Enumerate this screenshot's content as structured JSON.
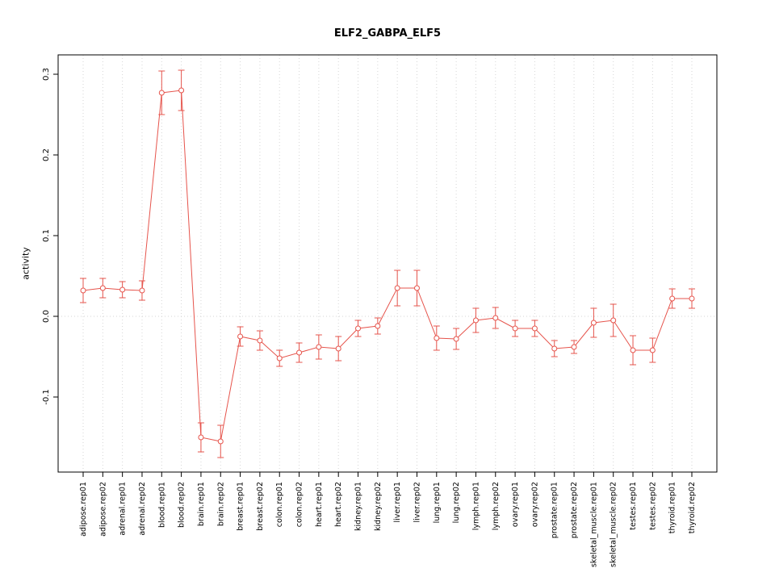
{
  "title": "ELF2_GABPA_ELF5",
  "chart_data": {
    "type": "line",
    "title": "ELF2_GABPA_ELF5",
    "xlabel": "",
    "ylabel": "activity",
    "ylim": [
      -0.193,
      0.324
    ],
    "yticks": [
      -0.1,
      0.0,
      0.1,
      0.2,
      0.3
    ],
    "ytick_labels": [
      "-0.1",
      "0.0",
      "0.1",
      "0.2",
      "0.3"
    ],
    "grid": "vertical-dotted-per-category-plus-zero-line",
    "legend": "none",
    "point_style": "open-circle-with-error-bars",
    "line_color": "#e6544c",
    "grid_color": "#d6d6d6",
    "axis_color": "#000000",
    "categories": [
      "adipose.rep01",
      "adipose.rep02",
      "adrenal.rep01",
      "adrenal.rep02",
      "blood.rep01",
      "blood.rep02",
      "brain.rep01",
      "brain.rep02",
      "breast.rep01",
      "breast.rep02",
      "colon.rep01",
      "colon.rep02",
      "heart.rep01",
      "heart.rep02",
      "kidney.rep01",
      "kidney.rep02",
      "liver.rep01",
      "liver.rep02",
      "lung.rep01",
      "lung.rep02",
      "lymph.rep01",
      "lymph.rep02",
      "ovary.rep01",
      "ovary.rep02",
      "prostate.rep01",
      "prostate.rep02",
      "skeletal_muscle.rep01",
      "skeletal_muscle.rep02",
      "testes.rep01",
      "testes.rep02",
      "thyroid.rep01",
      "thyroid.rep02"
    ],
    "series": [
      {
        "name": "activity",
        "values": [
          0.032,
          0.035,
          0.033,
          0.032,
          0.277,
          0.28,
          -0.15,
          -0.155,
          -0.025,
          -0.03,
          -0.052,
          -0.045,
          -0.038,
          -0.04,
          -0.015,
          -0.012,
          0.035,
          0.035,
          -0.027,
          -0.028,
          -0.005,
          -0.002,
          -0.015,
          -0.015,
          -0.04,
          -0.038,
          -0.008,
          -0.005,
          -0.042,
          -0.042,
          0.022,
          0.022
        ],
        "errors": [
          0.015,
          0.012,
          0.01,
          0.012,
          0.027,
          0.025,
          0.018,
          0.02,
          0.012,
          0.012,
          0.01,
          0.012,
          0.015,
          0.015,
          0.01,
          0.01,
          0.022,
          0.022,
          0.015,
          0.013,
          0.015,
          0.013,
          0.01,
          0.01,
          0.01,
          0.008,
          0.018,
          0.02,
          0.018,
          0.015,
          0.012,
          0.012
        ]
      }
    ]
  }
}
